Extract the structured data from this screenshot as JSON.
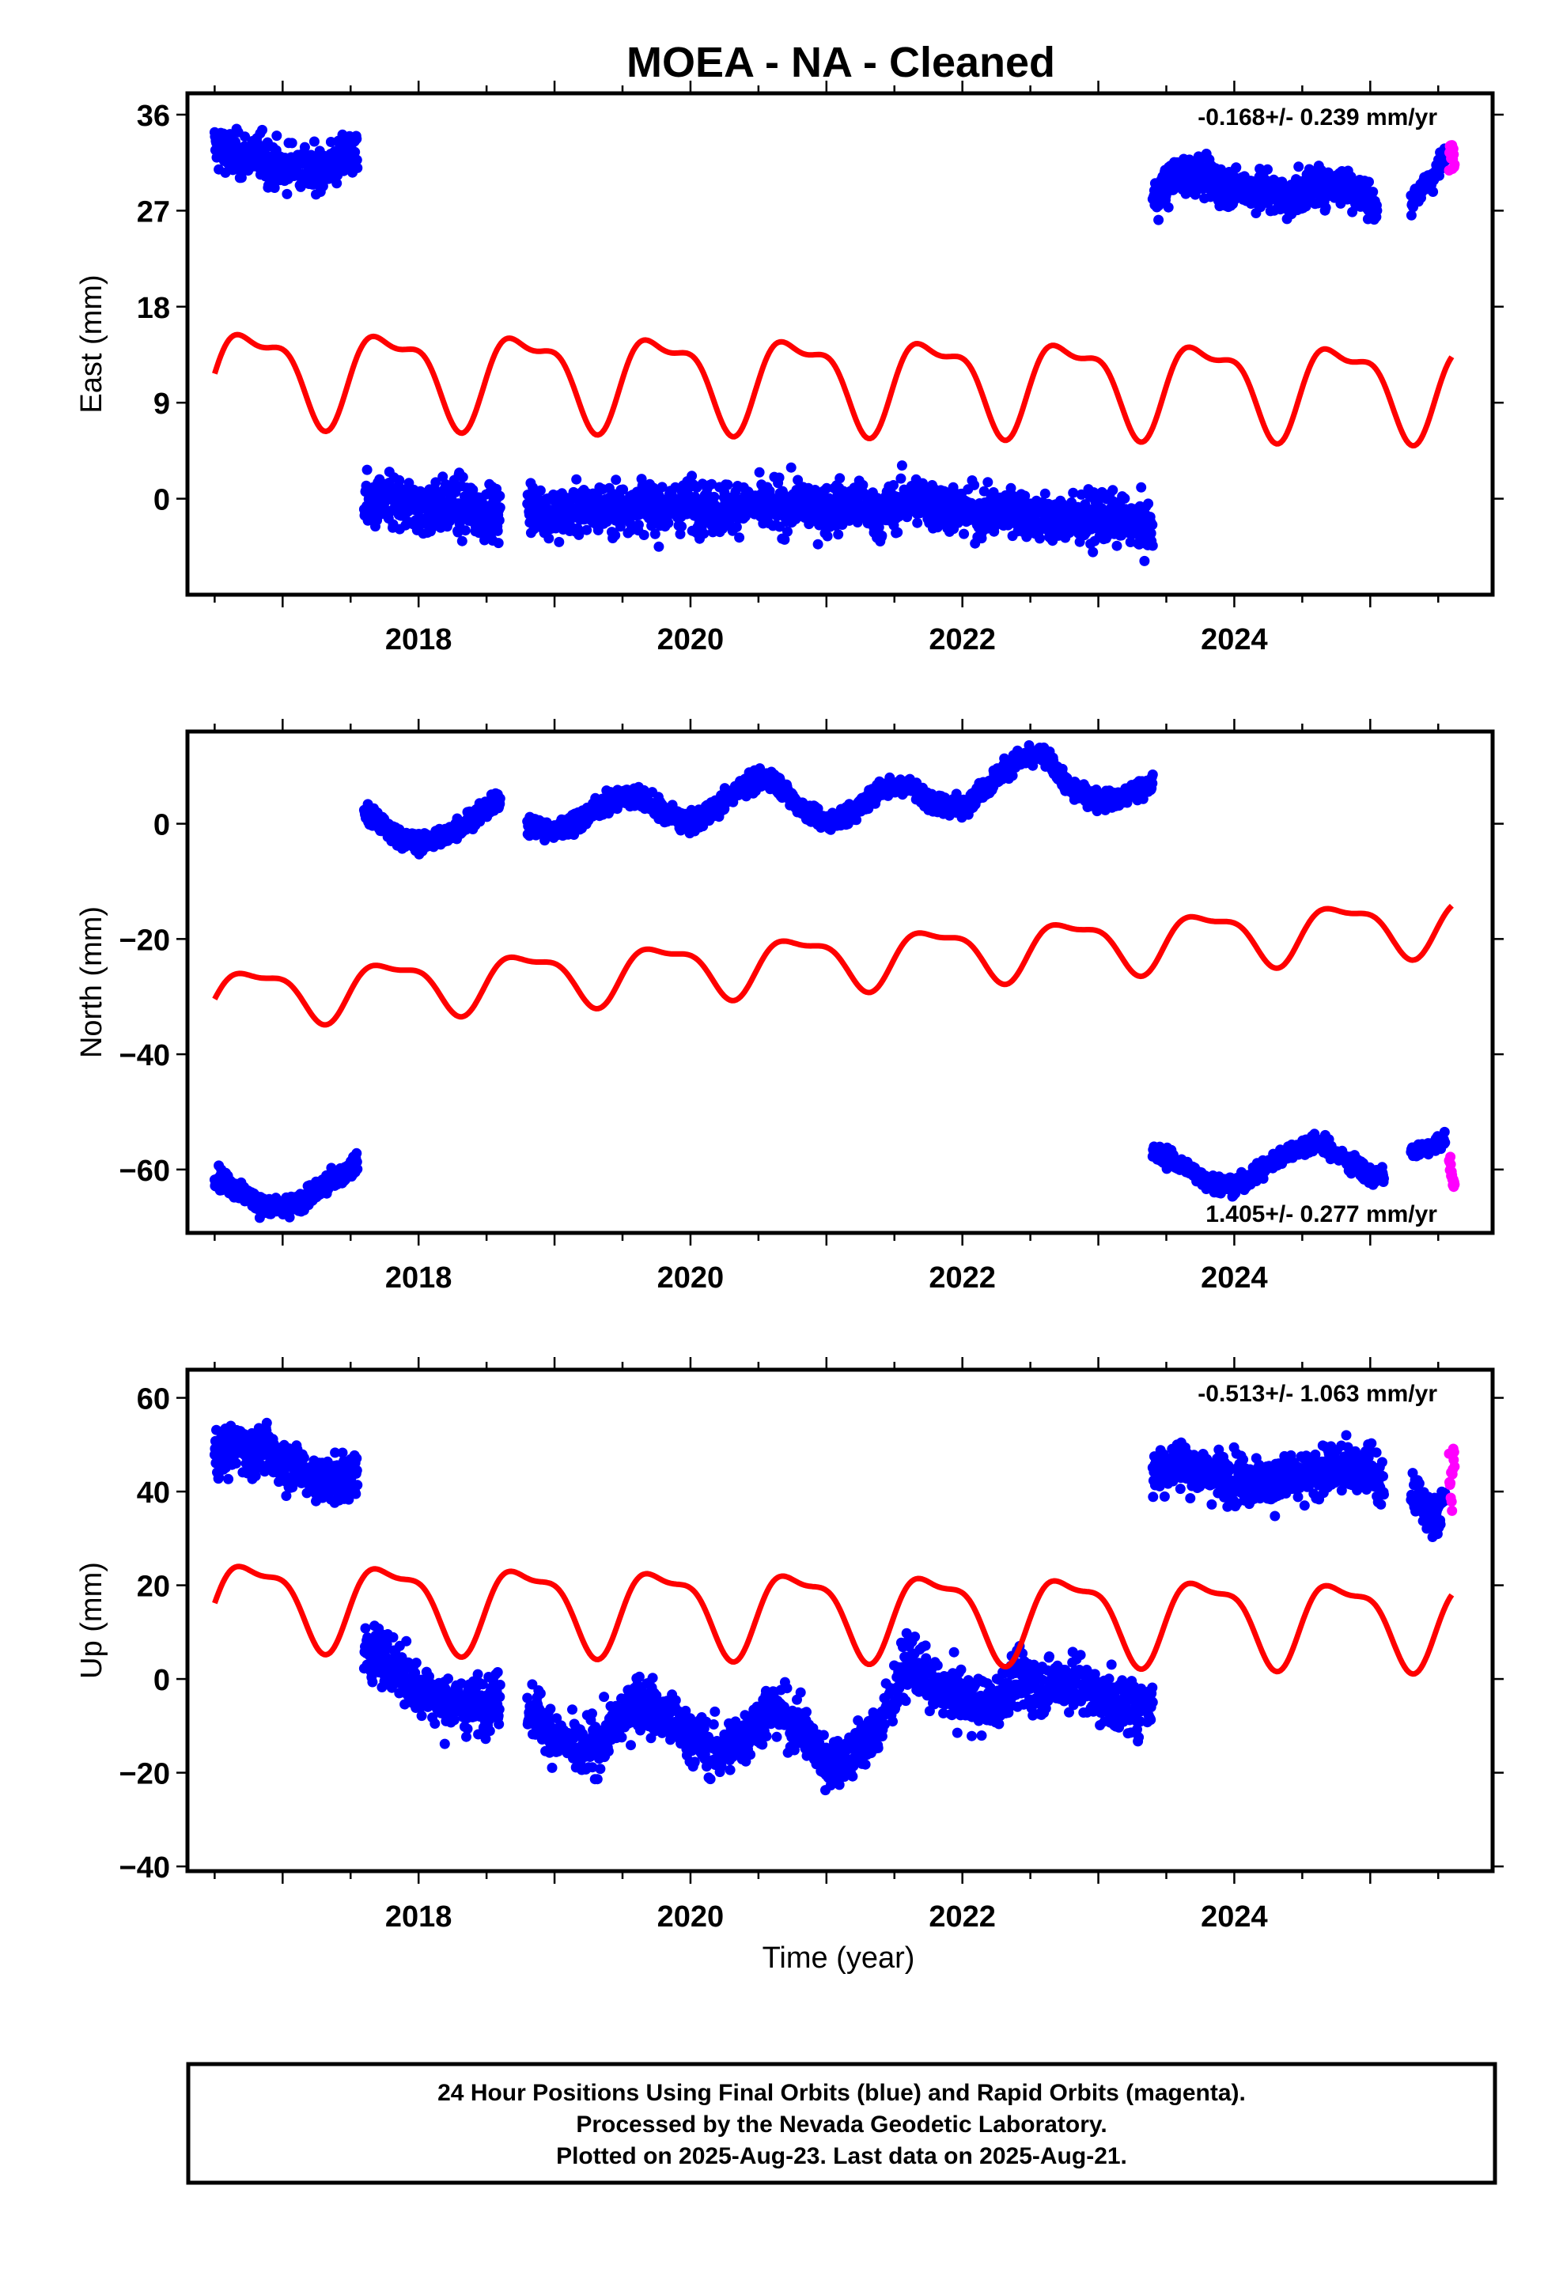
{
  "title": "MOEA  - NA - Cleaned",
  "footer": {
    "lines": [
      "24 Hour Positions Using Final Orbits (blue) and Rapid Orbits (magenta).",
      "Processed by the Nevada Geodetic Laboratory.",
      "Plotted on 2025-Aug-23. Last data on 2025-Aug-21."
    ]
  },
  "colors": {
    "final": "#0000ff",
    "rapid": "#ff00ff",
    "model": "#ff0000",
    "frame": "#000000"
  },
  "chart_data": [
    {
      "type": "scatter",
      "name": "east",
      "ylabel": "East (mm)",
      "xlabel": "",
      "xlim": [
        2016.3,
        2025.9
      ],
      "ylim": [
        -9,
        38
      ],
      "yticks": [
        36,
        27,
        18,
        9,
        0
      ],
      "xticks": [
        2018,
        2020,
        2022,
        2024
      ],
      "rate_text": "-0.168+/- 0.239 mm/yr",
      "rate_position": "top-right",
      "segments": [
        {
          "orbit": "final",
          "x": [
            2016.5,
            2016.6,
            2016.7,
            2016.8,
            2016.9,
            2017.0,
            2017.1,
            2017.2,
            2017.3,
            2017.4,
            2017.55
          ],
          "y": [
            33,
            32.5,
            32,
            32.5,
            31.5,
            31,
            31.5,
            30.5,
            31,
            31.5,
            32.5
          ],
          "spread": 1.8
        },
        {
          "orbit": "final",
          "x": [
            2017.6,
            2017.8,
            2018.0,
            2018.2,
            2018.4,
            2018.6
          ],
          "y": [
            -0.5,
            -0.5,
            -1,
            -0.5,
            -1,
            -1.5
          ],
          "spread": 2.2
        },
        {
          "orbit": "final",
          "x": [
            2018.8,
            2019.0,
            2019.2,
            2019.4,
            2019.6,
            2019.8,
            2020.0,
            2020.2,
            2020.4,
            2020.6,
            2020.8,
            2021.0,
            2021.2,
            2021.4,
            2021.6,
            2021.8,
            2022.0,
            2022.2,
            2022.4,
            2022.6,
            2022.8,
            2023.0,
            2023.2,
            2023.4
          ],
          "y": [
            -0.5,
            -1.5,
            -1,
            -1,
            -0.5,
            -1,
            -0.5,
            -1,
            -0.5,
            -1,
            -0.5,
            -1,
            -0.5,
            -1.5,
            0,
            -0.5,
            -1,
            -1.5,
            -1,
            -2,
            -2,
            -2,
            -2,
            -3
          ],
          "spread": 2.0
        },
        {
          "orbit": "final",
          "x": [
            2023.4,
            2023.6,
            2023.8,
            2024.0,
            2024.2,
            2024.4,
            2024.6,
            2024.8,
            2025.0,
            2025.05
          ],
          "y": [
            28,
            30.5,
            30,
            29,
            29,
            28,
            29.5,
            29.5,
            28,
            26.5
          ],
          "spread": 1.6
        },
        {
          "orbit": "final",
          "x": [
            2025.3,
            2025.45,
            2025.55
          ],
          "y": [
            28,
            30,
            32
          ],
          "spread": 1.0
        },
        {
          "orbit": "rapid",
          "x": [
            2025.58,
            2025.6,
            2025.62
          ],
          "y": [
            32,
            33,
            31.5
          ],
          "spread": 1.2
        }
      ],
      "model": {
        "start": 2016.5,
        "end": 2025.6,
        "offset_at_start": 12,
        "trend": -0.168,
        "annual_amp": 4.0,
        "semiannual_amp": 1.6
      }
    },
    {
      "type": "scatter",
      "name": "north",
      "ylabel": "North (mm)",
      "xlabel": "",
      "xlim": [
        2016.3,
        2025.9
      ],
      "ylim": [
        -71,
        16
      ],
      "yticks": [
        0,
        -20,
        -40,
        -60
      ],
      "xticks": [
        2018,
        2020,
        2022,
        2024
      ],
      "rate_text": "1.405+/- 0.277 mm/yr",
      "rate_position": "bottom-right",
      "segments": [
        {
          "orbit": "final",
          "x": [
            2016.5,
            2016.7,
            2016.9,
            2017.1,
            2017.3,
            2017.55
          ],
          "y": [
            -61,
            -64,
            -67,
            -66,
            -63,
            -59
          ],
          "spread": 1.5
        },
        {
          "orbit": "final",
          "x": [
            2017.6,
            2017.8,
            2018.0,
            2018.2,
            2018.4,
            2018.6
          ],
          "y": [
            2,
            -1.5,
            -3.5,
            -2,
            1,
            4
          ],
          "spread": 1.5
        },
        {
          "orbit": "final",
          "x": [
            2018.8,
            2019.0,
            2019.2,
            2019.4,
            2019.6,
            2019.8,
            2020.0,
            2020.2,
            2020.4,
            2020.6,
            2020.8,
            2021.0,
            2021.2,
            2021.4,
            2021.6,
            2021.8,
            2022.0,
            2022.2,
            2022.4,
            2022.6,
            2022.8,
            2023.0,
            2023.2,
            2023.4
          ],
          "y": [
            0,
            -1.5,
            1,
            4,
            5,
            2,
            0,
            3,
            7,
            8,
            3,
            0,
            2,
            6,
            7,
            3,
            3,
            7,
            11,
            12,
            6,
            4,
            5,
            7
          ],
          "spread": 1.5
        },
        {
          "orbit": "final",
          "x": [
            2023.4,
            2023.6,
            2023.8,
            2024.0,
            2024.2,
            2024.4,
            2024.6,
            2024.8,
            2025.0,
            2025.1
          ],
          "y": [
            -57,
            -59,
            -62,
            -63,
            -60,
            -57,
            -55,
            -58,
            -61,
            -61
          ],
          "spread": 1.3
        },
        {
          "orbit": "final",
          "x": [
            2025.3,
            2025.45,
            2025.55
          ],
          "y": [
            -57,
            -56,
            -55
          ],
          "spread": 1.0
        },
        {
          "orbit": "rapid",
          "x": [
            2025.58,
            2025.6,
            2025.62
          ],
          "y": [
            -58,
            -61,
            -63
          ],
          "spread": 1.5
        }
      ],
      "model": {
        "start": 2016.5,
        "end": 2025.6,
        "offset_at_start": -30,
        "trend": 1.405,
        "annual_amp": 4.5,
        "semiannual_amp": 1.6
      }
    },
    {
      "type": "scatter",
      "name": "up",
      "ylabel": "Up (mm)",
      "xlabel": "Time (year)",
      "xlim": [
        2016.3,
        2025.9
      ],
      "ylim": [
        -41,
        66
      ],
      "yticks": [
        60,
        40,
        20,
        0,
        -20,
        -40
      ],
      "xticks": [
        2018,
        2020,
        2022,
        2024
      ],
      "rate_text": "-0.513+/- 1.063 mm/yr",
      "rate_position": "top-right",
      "segments": [
        {
          "orbit": "final",
          "x": [
            2016.5,
            2016.7,
            2016.9,
            2017.1,
            2017.3,
            2017.55
          ],
          "y": [
            48,
            50,
            48,
            45,
            42,
            44
          ],
          "spread": 4.5
        },
        {
          "orbit": "final",
          "x": [
            2017.6,
            2017.8,
            2018.0,
            2018.2,
            2018.4,
            2018.6
          ],
          "y": [
            6,
            4,
            -2,
            -5,
            -6,
            -4
          ],
          "spread": 5
        },
        {
          "orbit": "final",
          "x": [
            2018.8,
            2019.0,
            2019.2,
            2019.4,
            2019.6,
            2019.8,
            2020.0,
            2020.2,
            2020.4,
            2020.6,
            2020.8,
            2021.0,
            2021.2,
            2021.4,
            2021.6,
            2021.8,
            2022.0,
            2022.2,
            2022.4,
            2022.6,
            2022.8,
            2023.0,
            2023.2,
            2023.4
          ],
          "y": [
            -5,
            -12,
            -16,
            -12,
            -4,
            -8,
            -12,
            -16,
            -12,
            -6,
            -10,
            -18,
            -16,
            -10,
            4,
            -2,
            -4,
            -6,
            0,
            -2,
            0,
            -4,
            -6,
            -5
          ],
          "spread": 5
        },
        {
          "orbit": "final",
          "x": [
            2023.4,
            2023.6,
            2023.8,
            2024.0,
            2024.2,
            2024.4,
            2024.6,
            2024.8,
            2025.0,
            2025.1
          ],
          "y": [
            44,
            46,
            44,
            43,
            42,
            42,
            44,
            45,
            45,
            40
          ],
          "spread": 4.5
        },
        {
          "orbit": "final",
          "x": [
            2025.3,
            2025.45,
            2025.55
          ],
          "y": [
            40,
            35,
            38
          ],
          "spread": 4
        },
        {
          "orbit": "rapid",
          "x": [
            2025.58,
            2025.6,
            2025.62
          ],
          "y": [
            45,
            38,
            50
          ],
          "spread": 5
        }
      ],
      "model": {
        "start": 2016.5,
        "end": 2025.6,
        "offset_at_start": 17,
        "trend": -0.513,
        "annual_amp": 8.5,
        "semiannual_amp": 3.0
      }
    }
  ]
}
